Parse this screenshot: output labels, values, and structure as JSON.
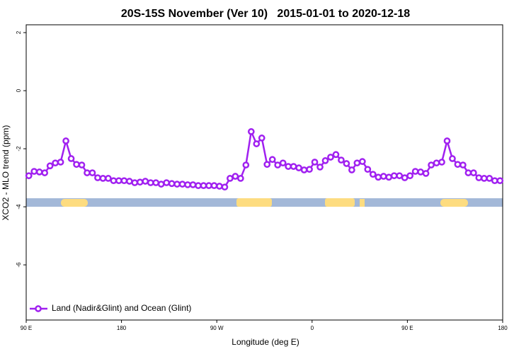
{
  "chart_data": {
    "type": "line",
    "title": "20S-15S November (Ver 10)   2015-01-01 to 2020-12-18",
    "x_label": "Longitude (deg E)",
    "y_label": "XCO2 - MLO trend (ppm)",
    "xlim": [
      90,
      540
    ],
    "ylim": [
      -7.9,
      2.27
    ],
    "xticks": [
      {
        "value": 90,
        "label": "90 E"
      },
      180,
      {
        "value": 270,
        "label": "90 W"
      },
      0,
      {
        "value": 450,
        "label": "90 E"
      },
      180
    ],
    "xtick_positions": [
      90,
      180,
      270,
      360,
      450,
      540
    ],
    "yticks": [
      2,
      0,
      -2,
      -4,
      -6
    ],
    "legend": "bottomleft",
    "x": [
      92.5,
      97.5,
      102.5,
      107.5,
      112.5,
      117.5,
      122.5,
      127.5,
      132.5,
      137.5,
      142.5,
      147.5,
      152.5,
      157.5,
      162.5,
      167.5,
      172.5,
      177.5,
      182.5,
      187.5,
      192.5,
      197.5,
      202.5,
      207.5,
      212.5,
      217.5,
      222.5,
      227.5,
      232.5,
      237.5,
      242.5,
      247.5,
      252.5,
      257.5,
      262.5,
      267.5,
      272.5,
      277.5,
      282.5,
      287.5,
      292.5,
      297.5,
      302.5,
      307.5,
      312.5,
      317.5,
      322.5,
      327.5,
      332.5,
      337.5,
      342.5,
      347.5,
      352.5,
      357.5,
      362.5,
      367.5,
      372.5,
      377.5,
      382.5,
      387.5,
      392.5,
      397.5,
      402.5,
      407.5,
      412.5,
      417.5,
      422.5,
      427.5,
      432.5,
      437.5,
      442.5,
      447.5,
      452.5,
      457.5,
      462.5,
      467.5,
      472.5,
      477.5,
      482.5,
      487.5,
      492.5,
      497.5,
      502.5,
      507.5,
      512.5,
      517.5,
      522.5,
      527.5,
      532.5,
      537.5
    ],
    "series": [
      {
        "name": "Land (Nadir&Glint) and Ocean (Glint)",
        "color": "#a020f0",
        "values": [
          -2.93,
          -2.78,
          -2.8,
          -2.83,
          -2.59,
          -2.49,
          -2.46,
          -1.73,
          -2.34,
          -2.54,
          -2.56,
          -2.83,
          -2.83,
          -3.0,
          -3.02,
          -3.02,
          -3.1,
          -3.1,
          -3.1,
          -3.12,
          -3.17,
          -3.15,
          -3.12,
          -3.17,
          -3.17,
          -3.22,
          -3.17,
          -3.2,
          -3.22,
          -3.22,
          -3.24,
          -3.24,
          -3.27,
          -3.27,
          -3.27,
          -3.27,
          -3.29,
          -3.32,
          -3.02,
          -2.95,
          -3.02,
          -2.56,
          -1.41,
          -1.83,
          -1.63,
          -2.54,
          -2.37,
          -2.56,
          -2.49,
          -2.61,
          -2.61,
          -2.66,
          -2.73,
          -2.71,
          -2.46,
          -2.63,
          -2.41,
          -2.29,
          -2.2,
          -2.39,
          -2.51,
          -2.73,
          -2.49,
          -2.44,
          -2.71,
          -2.88,
          -2.98,
          -2.95,
          -2.98,
          -2.93,
          -2.93,
          -3.0,
          -2.93,
          -2.78,
          -2.8,
          -2.85,
          -2.56,
          -2.49,
          -2.46,
          -1.73,
          -2.34,
          -2.54,
          -2.56,
          -2.83,
          -2.83,
          -3.0,
          -3.02,
          -3.02,
          -3.1,
          -3.1
        ]
      }
    ]
  }
}
